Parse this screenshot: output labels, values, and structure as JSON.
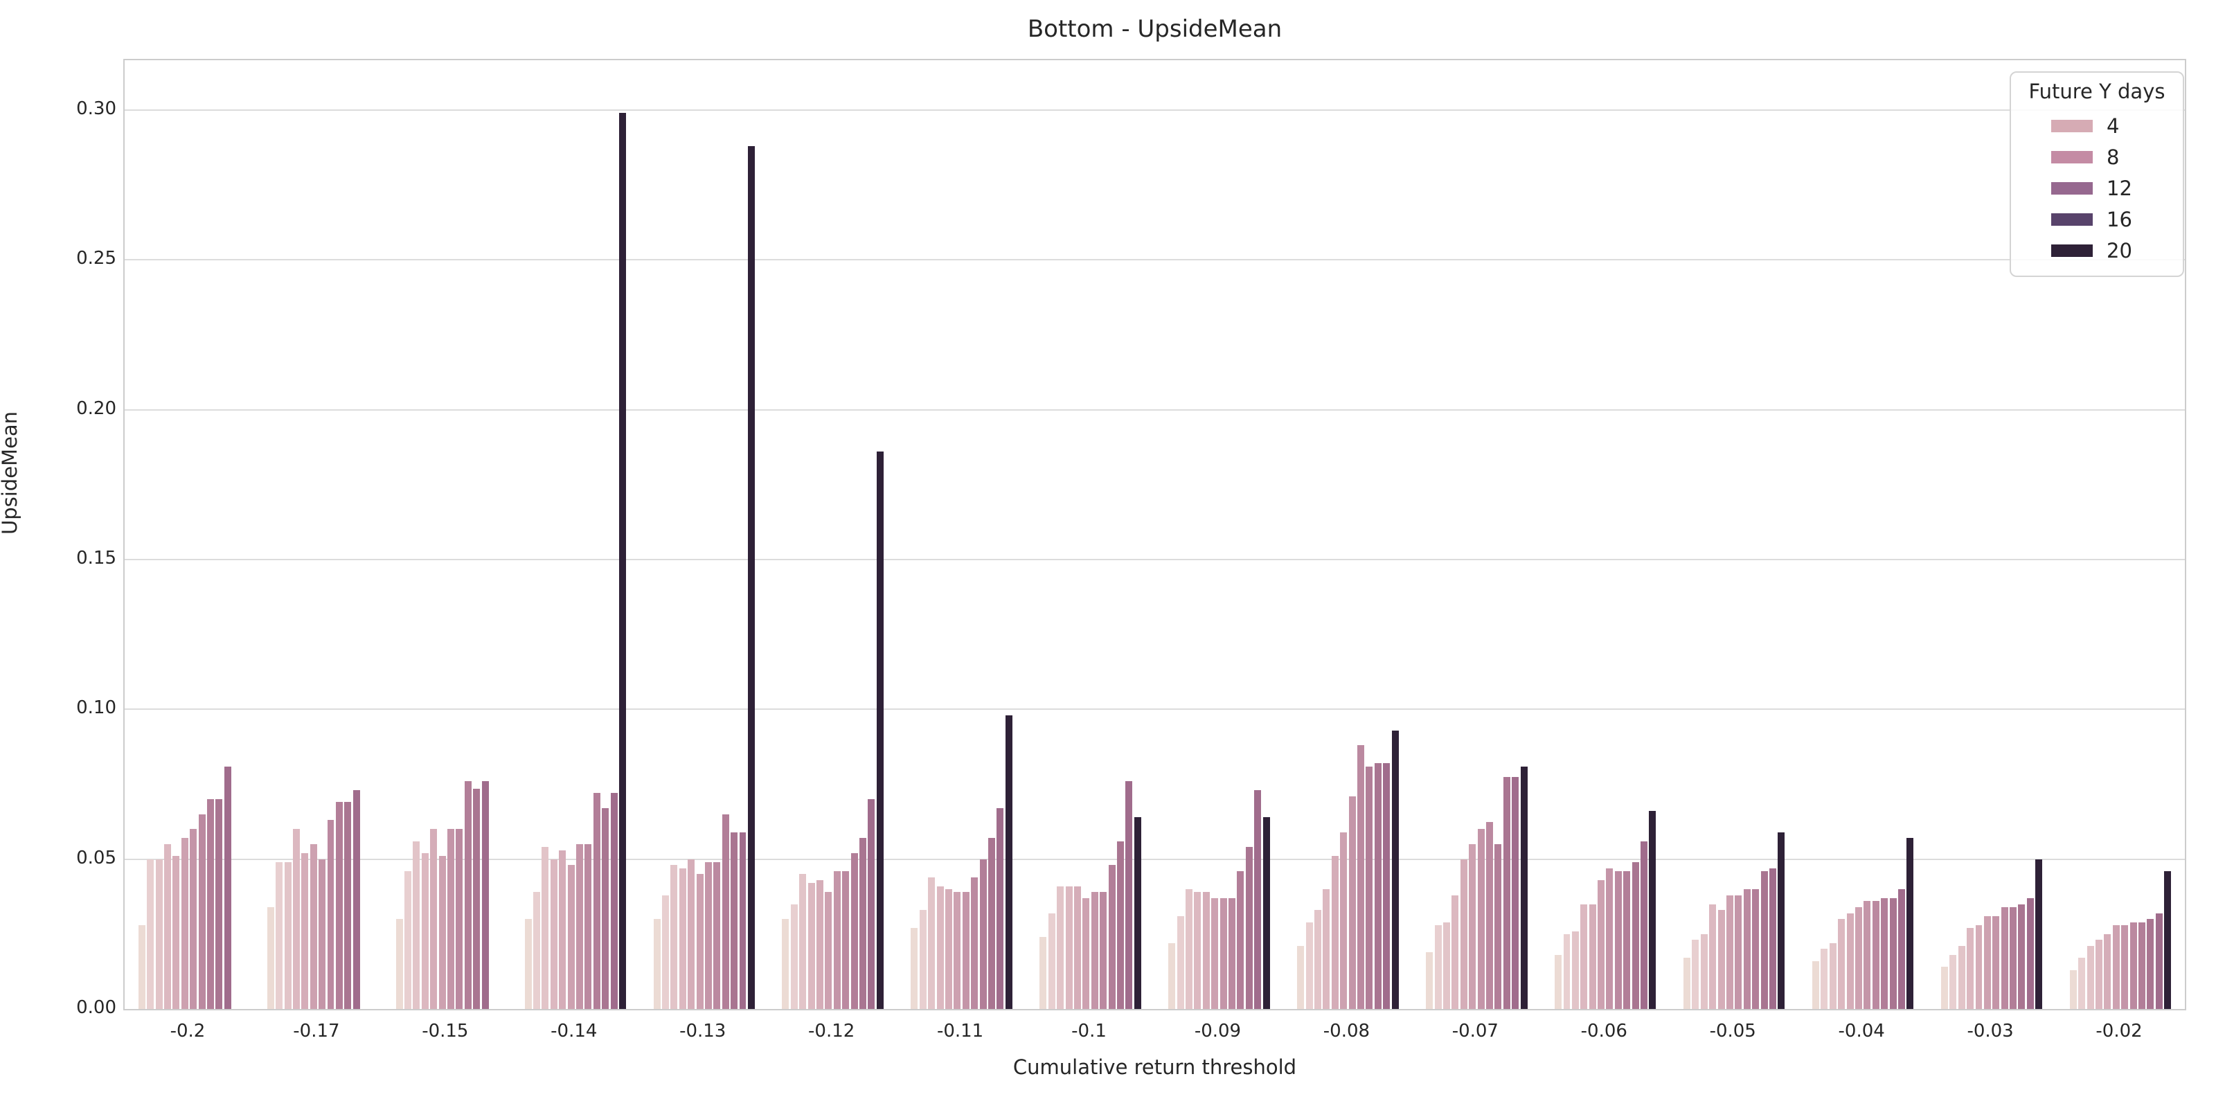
{
  "title": "Bottom - UpsideMean",
  "axes": {
    "x_label": "Cumulative return threshold",
    "y_label": "UpsideMean",
    "y_ticks": [
      "0.00",
      "0.05",
      "0.10",
      "0.15",
      "0.20",
      "0.25",
      "0.30"
    ],
    "y_tick_step": 0.05,
    "y_max": 0.3166
  },
  "legend": {
    "title": "Future Y days",
    "entries": [
      {
        "label": "4",
        "color": "#d6abb4"
      },
      {
        "label": "8",
        "color": "#c48ba4"
      },
      {
        "label": "12",
        "color": "#96688f"
      },
      {
        "label": "16",
        "color": "#58436b"
      },
      {
        "label": "20",
        "color": "#2e2137"
      }
    ]
  },
  "colors": {
    "bar_palette": [
      "#ecdbd4",
      "#e8cfd0",
      "#e2c4c8",
      "#dcb8c0",
      "#d5adb8",
      "#cda1b0",
      "#c495a8",
      "#bb89a0",
      "#b27e98",
      "#a97591",
      "#a06c8c"
    ],
    "bar_darkest": "#2e2137",
    "grid": "#dcdcdc",
    "spine": "#cccccc",
    "text": "#262626"
  },
  "chart_data": {
    "type": "bar",
    "title": "Bottom - UpsideMean",
    "xlabel": "Cumulative return threshold",
    "ylabel": "UpsideMean",
    "ylim": [
      0,
      0.317
    ],
    "grid": true,
    "legend_position": "upper right",
    "hue_title": "Future Y days",
    "hue_legend_labels": [
      "4",
      "8",
      "12",
      "16",
      "20"
    ],
    "bars_per_group": 12,
    "categories": [
      "-0.2",
      "-0.17",
      "-0.15",
      "-0.14",
      "-0.13",
      "-0.12",
      "-0.11",
      "-0.1",
      "-0.09",
      "-0.08",
      "-0.07",
      "-0.06",
      "-0.05",
      "-0.04",
      "-0.03",
      "-0.02"
    ],
    "groups": [
      {
        "threshold": "-0.2",
        "gradient_values": [
          0.028,
          0.05,
          0.05,
          0.055,
          0.051,
          0.057,
          0.06,
          0.065,
          0.07,
          0.07,
          0.081
        ],
        "darkest_value": null
      },
      {
        "threshold": "-0.17",
        "gradient_values": [
          0.034,
          0.049,
          0.049,
          0.06,
          0.052,
          0.055,
          0.05,
          0.063,
          0.069,
          0.069,
          0.073
        ],
        "darkest_value": null
      },
      {
        "threshold": "-0.15",
        "gradient_values": [
          0.03,
          0.046,
          0.056,
          0.052,
          0.06,
          0.051,
          0.06,
          0.06,
          0.076,
          0.0735,
          0.076
        ],
        "darkest_value": null
      },
      {
        "threshold": "-0.14",
        "gradient_values": [
          0.03,
          0.039,
          0.054,
          0.05,
          0.053,
          0.048,
          0.055,
          0.055,
          0.072,
          0.067,
          0.072
        ],
        "darkest_value": 0.299
      },
      {
        "threshold": "-0.13",
        "gradient_values": [
          0.03,
          0.038,
          0.048,
          0.047,
          0.05,
          0.045,
          0.049,
          0.049,
          0.065,
          0.059,
          0.059
        ],
        "darkest_value": 0.288
      },
      {
        "threshold": "-0.12",
        "gradient_values": [
          0.03,
          0.035,
          0.045,
          0.042,
          0.043,
          0.039,
          0.046,
          0.046,
          0.052,
          0.057,
          0.07
        ],
        "darkest_value": 0.186
      },
      {
        "threshold": "-0.11",
        "gradient_values": [
          0.027,
          0.033,
          0.044,
          0.041,
          0.04,
          0.039,
          0.039,
          0.044,
          0.05,
          0.057,
          0.067
        ],
        "darkest_value": 0.098
      },
      {
        "threshold": "-0.1",
        "gradient_values": [
          0.024,
          0.032,
          0.041,
          0.041,
          0.041,
          0.037,
          0.039,
          0.039,
          0.048,
          0.056,
          0.076
        ],
        "darkest_value": 0.064
      },
      {
        "threshold": "-0.09",
        "gradient_values": [
          0.022,
          0.031,
          0.04,
          0.039,
          0.039,
          0.037,
          0.037,
          0.037,
          0.046,
          0.054,
          0.073
        ],
        "darkest_value": 0.064
      },
      {
        "threshold": "-0.08",
        "gradient_values": [
          0.021,
          0.029,
          0.033,
          0.04,
          0.051,
          0.059,
          0.071,
          0.088,
          0.081,
          0.082,
          0.082
        ],
        "darkest_value": 0.093
      },
      {
        "threshold": "-0.07",
        "gradient_values": [
          0.019,
          0.028,
          0.029,
          0.038,
          0.05,
          0.055,
          0.06,
          0.0625,
          0.055,
          0.0775,
          0.0775
        ],
        "darkest_value": 0.081
      },
      {
        "threshold": "-0.06",
        "gradient_values": [
          0.018,
          0.025,
          0.026,
          0.035,
          0.035,
          0.043,
          0.047,
          0.046,
          0.046,
          0.049,
          0.056
        ],
        "darkest_value": 0.066
      },
      {
        "threshold": "-0.05",
        "gradient_values": [
          0.017,
          0.023,
          0.025,
          0.035,
          0.033,
          0.038,
          0.038,
          0.04,
          0.04,
          0.046,
          0.047
        ],
        "darkest_value": 0.059
      },
      {
        "threshold": "-0.04",
        "gradient_values": [
          0.016,
          0.02,
          0.022,
          0.03,
          0.032,
          0.034,
          0.036,
          0.036,
          0.037,
          0.037,
          0.04
        ],
        "darkest_value": 0.057
      },
      {
        "threshold": "-0.03",
        "gradient_values": [
          0.014,
          0.018,
          0.021,
          0.027,
          0.028,
          0.031,
          0.031,
          0.034,
          0.034,
          0.035,
          0.037
        ],
        "darkest_value": 0.05
      },
      {
        "threshold": "-0.02",
        "gradient_values": [
          0.013,
          0.017,
          0.021,
          0.023,
          0.025,
          0.028,
          0.028,
          0.029,
          0.029,
          0.03,
          0.032
        ],
        "darkest_value": 0.046
      }
    ]
  }
}
